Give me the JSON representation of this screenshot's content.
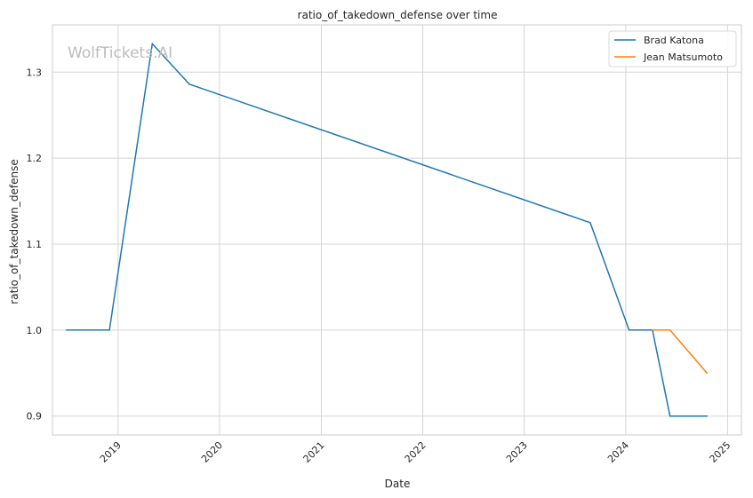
{
  "watermark": "WolfTickets.AI",
  "chart_data": {
    "type": "line",
    "title": "ratio_of_takedown_defense over time",
    "xlabel": "Date",
    "ylabel": "ratio_of_takedown_defense",
    "x_ticks": [
      "2019",
      "2020",
      "2021",
      "2022",
      "2023",
      "2024",
      "2025"
    ],
    "y_ticks": [
      "0.9",
      "1.0",
      "1.1",
      "1.2",
      "1.3"
    ],
    "xlim": [
      "2018-05-10",
      "2025-02-20"
    ],
    "ylim": [
      0.878,
      1.355
    ],
    "grid": true,
    "legend_position": "top-right",
    "series": [
      {
        "name": "Brad Katona",
        "color": "#1f77b4",
        "points": [
          [
            "2018-06-30",
            1.0
          ],
          [
            "2018-12-01",
            1.0
          ],
          [
            "2019-05-04",
            1.333
          ],
          [
            "2019-09-14",
            1.286
          ],
          [
            "2023-08-26",
            1.125
          ],
          [
            "2024-01-13",
            1.0
          ],
          [
            "2024-04-06",
            1.0
          ],
          [
            "2024-06-08",
            0.9
          ],
          [
            "2024-10-19",
            0.9
          ]
        ]
      },
      {
        "name": "Jean Matsumoto",
        "color": "#ff7f0e",
        "points": [
          [
            "2024-04-06",
            1.0
          ],
          [
            "2024-06-08",
            1.0
          ],
          [
            "2024-10-19",
            0.95
          ]
        ]
      }
    ]
  }
}
